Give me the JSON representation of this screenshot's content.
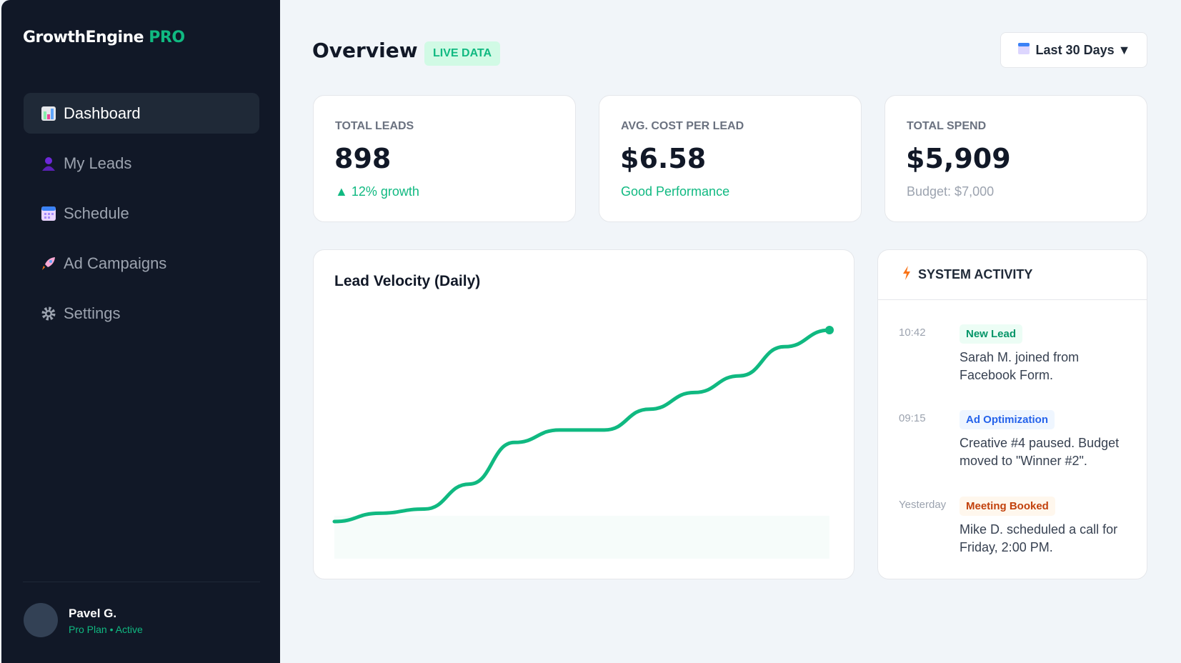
{
  "sidebar": {
    "logo": {
      "name": "GrowthEngine",
      "suffix": "PRO"
    },
    "items": [
      {
        "label": "Dashboard",
        "icon": "bar-chart-icon",
        "active": true
      },
      {
        "label": "My Leads",
        "icon": "user-icon"
      },
      {
        "label": "Schedule",
        "icon": "calendar-icon"
      },
      {
        "label": "Ad Campaigns",
        "icon": "rocket-icon"
      },
      {
        "label": "Settings",
        "icon": "gear-icon"
      }
    ],
    "user": {
      "name": "Pavel G.",
      "plan": "Pro Plan • Active"
    }
  },
  "header": {
    "title": "Overview",
    "badge": "LIVE DATA",
    "date_range": "Last 30 Days ▼"
  },
  "stats": [
    {
      "label": "TOTAL LEADS",
      "value": "898",
      "sub": "▲ 12% growth",
      "sub_color": "#10b981"
    },
    {
      "label": "AVG. COST PER LEAD",
      "value": "$6.58",
      "sub": "Good Performance",
      "sub_color": "#10b981"
    },
    {
      "label": "TOTAL SPEND",
      "value": "$5,909",
      "sub": "Budget: $7,000",
      "sub_color": "#9ca3af"
    }
  ],
  "chart_data": {
    "type": "line",
    "title": "Lead Velocity (Daily)",
    "values": [
      12,
      14,
      15,
      21,
      31,
      34,
      34,
      39,
      43,
      47,
      54,
      58
    ],
    "color": "#10b981",
    "grid": false
  },
  "activity": {
    "title": "SYSTEM ACTIVITY",
    "items": [
      {
        "time": "10:42",
        "badge": "New Lead",
        "badge_color": "#059669",
        "badge_bg": "#ecfdf5",
        "text": "Sarah M. joined from Facebook Form."
      },
      {
        "time": "09:15",
        "badge": "Ad Optimization",
        "badge_color": "#2563eb",
        "badge_bg": "#eff6ff",
        "text": "Creative #4 paused. Budget moved to \"Winner #2\"."
      },
      {
        "time": "Yesterday",
        "badge": "Meeting Booked",
        "badge_color": "#c2410c",
        "badge_bg": "#fff7ed",
        "text": "Mike D. scheduled a call for Friday, 2:00 PM."
      }
    ]
  }
}
